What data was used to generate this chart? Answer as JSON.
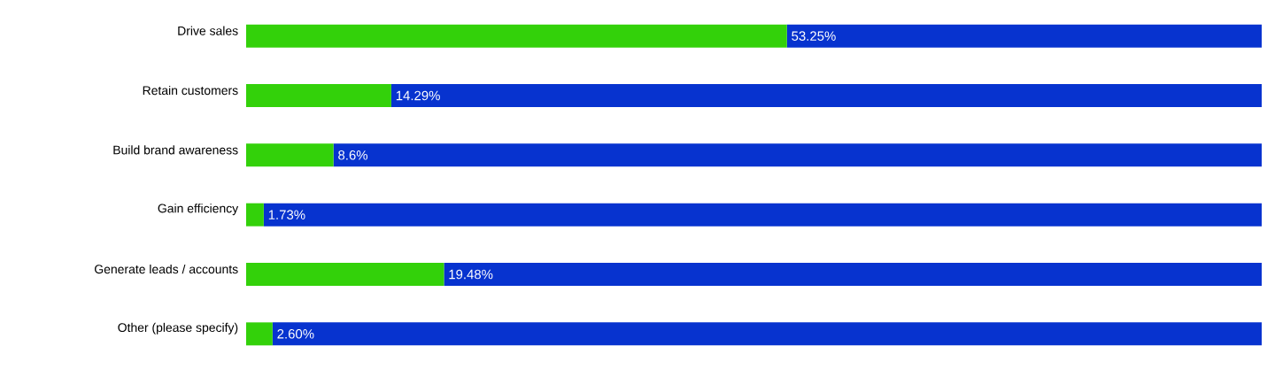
{
  "chart_data": {
    "type": "bar",
    "orientation": "horizontal",
    "stacked": true,
    "categories": [
      "Drive sales",
      "Retain customers",
      "Build brand awareness",
      "Gain efficiency",
      "Generate leads / accounts",
      "Other (please specify)"
    ],
    "series": [
      {
        "color": "#33d10a",
        "values": [
          53.25,
          14.29,
          8.6,
          1.73,
          19.48,
          2.6
        ],
        "value_labels": [
          "53.25%",
          "14.29%",
          "8.6%",
          "1.73%",
          "19.48%",
          "2.60%"
        ]
      },
      {
        "color": "#0733cf",
        "values": [
          46.75,
          85.71,
          91.4,
          98.27,
          80.52,
          97.4
        ]
      }
    ]
  }
}
